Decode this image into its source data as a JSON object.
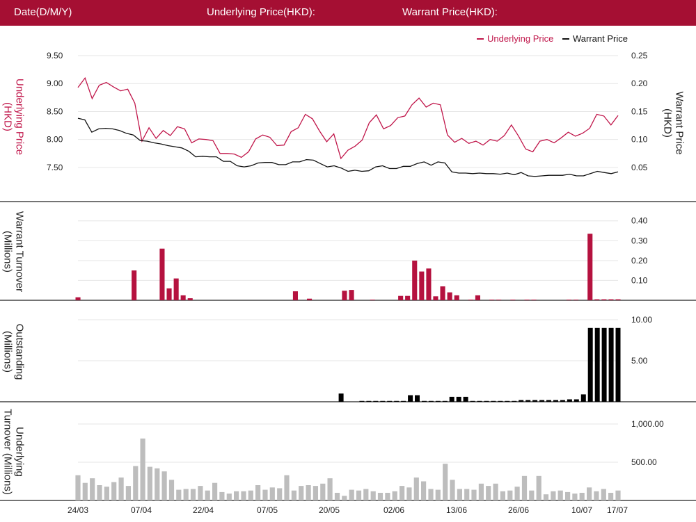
{
  "header": {
    "date_label": "Date(D/M/Y)",
    "underlying_label": "Underlying Price(HKD):",
    "warrant_label": "Warrant Price(HKD):"
  },
  "colors": {
    "accent": "#a50f33",
    "underlying": "#c0164a",
    "warrant": "#111111",
    "turnover_bar": "#b5123f",
    "outstanding_bar": "#000000",
    "underlying_turnover_bar": "#bdbdbd",
    "gridline": "#e6e6e6"
  },
  "chart_data": [
    {
      "type": "line",
      "legend": [
        "Underlying Price",
        "Warrant Price"
      ],
      "legend_position": "top-right",
      "ylabel_left": "Underlying Price (HKD)",
      "ylabel_right": "Warrant  Price (HKD)",
      "ylim_left": [
        7.3,
        9.5
      ],
      "ylim_right": [
        0.03,
        0.25
      ],
      "yticks_left": [
        "9.50",
        "9.00",
        "8.50",
        "8.00",
        "7.50"
      ],
      "yticks_right": [
        "0.25",
        "0.20",
        "0.15",
        "0.10",
        "0.05"
      ],
      "series": [
        {
          "name": "Underlying Price",
          "axis": "left",
          "values": [
            8.93,
            9.1,
            8.73,
            8.97,
            9.02,
            8.94,
            8.87,
            8.9,
            8.65,
            7.97,
            8.21,
            8.02,
            8.16,
            8.07,
            8.23,
            8.19,
            7.94,
            8.01,
            8.0,
            7.98,
            7.75,
            7.75,
            7.74,
            7.68,
            7.78,
            8.01,
            8.08,
            8.04,
            7.89,
            7.9,
            8.14,
            8.21,
            8.45,
            8.37,
            8.15,
            7.96,
            8.1,
            7.66,
            7.81,
            7.88,
            7.99,
            8.3,
            8.44,
            8.19,
            8.25,
            8.39,
            8.42,
            8.62,
            8.74,
            8.58,
            8.65,
            8.62,
            8.08,
            7.95,
            8.02,
            7.93,
            7.97,
            7.9,
            8.0,
            7.97,
            8.07,
            8.26,
            8.06,
            7.83,
            7.78,
            7.97,
            8.0,
            7.94,
            8.03,
            8.13,
            8.06,
            8.11,
            8.2,
            8.45,
            8.42,
            8.26,
            8.43
          ]
        },
        {
          "name": "Warrant Price",
          "axis": "right",
          "values": [
            0.138,
            0.135,
            0.113,
            0.119,
            0.12,
            0.119,
            0.116,
            0.111,
            0.108,
            0.098,
            0.097,
            0.094,
            0.092,
            0.089,
            0.087,
            0.085,
            0.079,
            0.069,
            0.07,
            0.069,
            0.069,
            0.061,
            0.061,
            0.053,
            0.051,
            0.053,
            0.058,
            0.059,
            0.059,
            0.055,
            0.055,
            0.06,
            0.06,
            0.064,
            0.063,
            0.057,
            0.051,
            0.053,
            0.049,
            0.043,
            0.045,
            0.043,
            0.044,
            0.051,
            0.053,
            0.048,
            0.048,
            0.052,
            0.052,
            0.057,
            0.06,
            0.054,
            0.06,
            0.058,
            0.042,
            0.04,
            0.04,
            0.039,
            0.04,
            0.039,
            0.039,
            0.038,
            0.04,
            0.037,
            0.041,
            0.035,
            0.034,
            0.035,
            0.036,
            0.036,
            0.036,
            0.038,
            0.035,
            0.035,
            0.039,
            0.043,
            0.041,
            0.039,
            0.042
          ]
        }
      ]
    },
    {
      "type": "bar",
      "ylabel": "Warrant  Turnover (Millions)",
      "ylim": [
        0,
        0.42
      ],
      "yticks": [
        "0.40",
        "0.30",
        "0.20",
        "0.10"
      ],
      "values": [
        0.015,
        0.0,
        0.0,
        0.0,
        0.0,
        0.0,
        0.0,
        0.0,
        0.15,
        0.0,
        0.0,
        0.0,
        0.26,
        0.06,
        0.11,
        0.025,
        0.01,
        0.0,
        0.0,
        0.0,
        0.0,
        0.0,
        0.0,
        0.0,
        0.0,
        0.0,
        0.0,
        0.0,
        0.0,
        0.0,
        0.0,
        0.045,
        0.0,
        0.008,
        0.0,
        0.0,
        0.0,
        0.0,
        0.048,
        0.052,
        0.0,
        0.0,
        0.003,
        0.0,
        0.0,
        0.0,
        0.022,
        0.022,
        0.2,
        0.145,
        0.16,
        0.02,
        0.07,
        0.04,
        0.025,
        0.0,
        0.003,
        0.025,
        0.0,
        0.003,
        0.003,
        0.0,
        0.003,
        0.0,
        0.003,
        0.003,
        0.0,
        0.0,
        0.0,
        0.0,
        0.003,
        0.003,
        0.0,
        0.335,
        0.005,
        0.005,
        0.005,
        0.005
      ]
    },
    {
      "type": "bar",
      "ylabel": "Outstanding (Millions)",
      "ylim": [
        0,
        10
      ],
      "yticks": [
        "10.00",
        "5.00"
      ],
      "values": [
        0,
        0,
        0,
        0,
        0,
        0,
        0,
        0,
        0,
        0,
        0,
        0,
        0,
        0,
        0,
        0,
        0,
        0,
        0,
        0,
        0,
        0,
        0,
        0,
        0,
        0,
        0,
        0,
        0,
        0,
        0,
        0,
        0,
        0,
        0,
        0,
        0,
        0,
        1.0,
        0,
        0,
        0.1,
        0.1,
        0.1,
        0.1,
        0.1,
        0.1,
        0.1,
        0.8,
        0.8,
        0.1,
        0.1,
        0.1,
        0.1,
        0.6,
        0.6,
        0.6,
        0.1,
        0.1,
        0.1,
        0.1,
        0.1,
        0.1,
        0.1,
        0.2,
        0.2,
        0.2,
        0.2,
        0.2,
        0.2,
        0.2,
        0.3,
        0.3,
        0.9,
        9.0,
        9.0,
        9.0,
        9.0,
        9.0
      ]
    },
    {
      "type": "bar",
      "ylabel": "Underlying Turnover (Millions)",
      "ylim": [
        0,
        1000
      ],
      "yticks": [
        "1,000.00",
        "500.00"
      ],
      "xticks": [
        "24/03",
        "07/04",
        "22/04",
        "07/05",
        "20/05",
        "02/06",
        "13/06",
        "26/06",
        "10/07",
        "17/07"
      ],
      "values": [
        330,
        230,
        290,
        200,
        180,
        240,
        300,
        190,
        450,
        810,
        440,
        420,
        380,
        270,
        140,
        150,
        150,
        190,
        130,
        230,
        110,
        90,
        120,
        120,
        130,
        200,
        140,
        170,
        160,
        330,
        130,
        190,
        200,
        190,
        220,
        290,
        100,
        60,
        140,
        130,
        150,
        120,
        100,
        100,
        120,
        190,
        170,
        300,
        250,
        150,
        140,
        480,
        270,
        150,
        150,
        140,
        220,
        190,
        220,
        120,
        130,
        180,
        320,
        130,
        320,
        80,
        120,
        130,
        110,
        90,
        100,
        170,
        120,
        150,
        100,
        130
      ]
    }
  ]
}
